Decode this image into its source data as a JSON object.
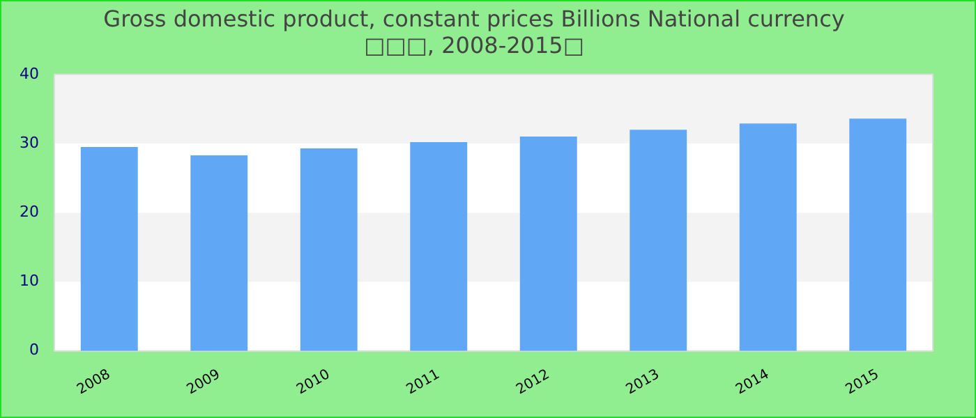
{
  "chart_data": {
    "type": "bar",
    "title": "Gross domestic product, constant prices Billions National currency\n□□□, 2008-2015□",
    "categories": [
      "2008",
      "2009",
      "2010",
      "2011",
      "2012",
      "2013",
      "2014",
      "2015"
    ],
    "values": [
      29.5,
      28.3,
      29.3,
      30.2,
      31.0,
      32.0,
      32.9,
      33.6
    ],
    "color": "#60a8f5",
    "ylim": [
      0,
      40
    ],
    "yticks": [
      0,
      10,
      20,
      30,
      40
    ]
  }
}
